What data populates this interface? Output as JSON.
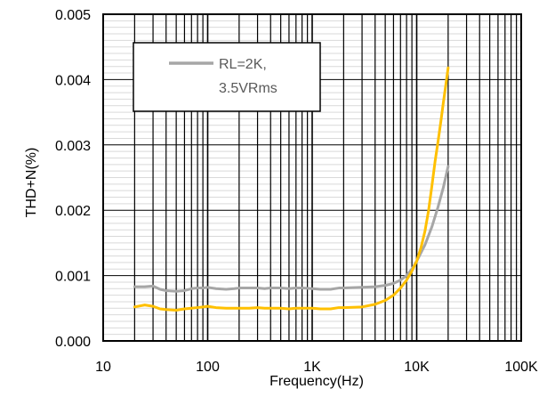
{
  "chart_data": {
    "type": "line",
    "xscale": "log",
    "xlim": [
      10,
      100000
    ],
    "ylim": [
      0,
      0.005
    ],
    "grid": true,
    "xlabel": "Frequency(Hz)",
    "ylabel": "THD+N(%)",
    "x_tick_values": [
      10,
      100,
      1000,
      10000,
      100000
    ],
    "x_tick_labels": [
      "10",
      "100",
      "1K",
      "10K",
      "100K"
    ],
    "y_tick_values": [
      0,
      0.001,
      0.002,
      0.003,
      0.004,
      0.005
    ],
    "y_tick_labels": [
      "0.000",
      "0.001",
      "0.002",
      "0.003",
      "0.004",
      "0.005"
    ],
    "legend_placement": "top-left",
    "series": [
      {
        "name": "RL=2K,\n3.5VRms",
        "color": "#a6a6a6",
        "x": [
          20,
          25,
          30,
          35,
          40,
          50,
          60,
          70,
          80,
          90,
          100,
          120,
          150,
          180,
          200,
          250,
          300,
          350,
          400,
          500,
          600,
          700,
          800,
          1000,
          1200,
          1500,
          1800,
          2000,
          3000,
          4000,
          5000,
          6000,
          7000,
          8000,
          9000,
          10000,
          12000,
          14000,
          16000,
          18000,
          20000
        ],
        "y": [
          0.00083,
          0.00083,
          0.00084,
          0.00079,
          0.00077,
          0.00076,
          0.00077,
          0.0008,
          0.00081,
          0.00081,
          0.00082,
          0.0008,
          0.00079,
          0.0008,
          0.00081,
          0.00081,
          0.00081,
          0.0008,
          0.00081,
          0.00081,
          0.0008,
          0.00081,
          0.00081,
          0.0008,
          0.00079,
          0.00079,
          0.00081,
          0.00081,
          0.00082,
          0.00083,
          0.00085,
          0.00088,
          0.00093,
          0.001,
          0.0011,
          0.00122,
          0.00147,
          0.00175,
          0.00205,
          0.00235,
          0.00267
        ]
      },
      {
        "name": "",
        "color": "#ffc000",
        "x": [
          20,
          25,
          30,
          35,
          40,
          50,
          60,
          70,
          80,
          90,
          100,
          120,
          150,
          180,
          200,
          250,
          300,
          350,
          400,
          500,
          600,
          700,
          800,
          1000,
          1200,
          1500,
          1800,
          2000,
          3000,
          4000,
          5000,
          6000,
          7000,
          8000,
          9000,
          10000,
          11000,
          12000,
          13000,
          14000,
          15000,
          16000,
          17000,
          18000,
          19000,
          20000
        ],
        "y": [
          0.00052,
          0.00055,
          0.00053,
          0.00049,
          0.00048,
          0.00047,
          0.00049,
          0.0005,
          0.00051,
          0.00052,
          0.00053,
          0.00051,
          0.0005,
          0.0005,
          0.0005,
          0.0005,
          0.00051,
          0.0005,
          0.0005,
          0.0005,
          0.00049,
          0.0005,
          0.0005,
          0.0005,
          0.00049,
          0.00049,
          0.00051,
          0.00051,
          0.00052,
          0.00056,
          0.00062,
          0.0007,
          0.00081,
          0.00093,
          0.00107,
          0.00122,
          0.00143,
          0.00168,
          0.002,
          0.00238,
          0.00275,
          0.00305,
          0.00335,
          0.00365,
          0.00392,
          0.00418
        ]
      }
    ]
  }
}
